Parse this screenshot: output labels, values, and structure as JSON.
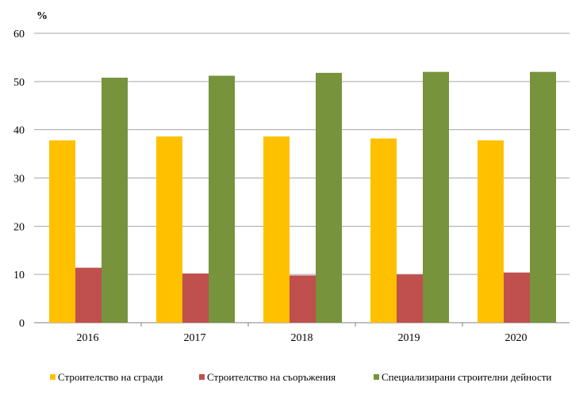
{
  "chart_data": {
    "type": "bar",
    "title": "",
    "xlabel": "",
    "ylabel": "%",
    "ylim": [
      0,
      60
    ],
    "yticks": [
      0,
      10,
      20,
      30,
      40,
      50,
      60
    ],
    "grid": true,
    "legend_position": "bottom",
    "categories": [
      "2016",
      "2017",
      "2018",
      "2019",
      "2020"
    ],
    "series": [
      {
        "name": "Строителство на сгради",
        "color": "#FFC000",
        "values": [
          37.8,
          38.6,
          38.6,
          38.2,
          37.8
        ]
      },
      {
        "name": "Строителство на съоръжения",
        "color": "#C0504D",
        "values": [
          11.4,
          10.2,
          9.8,
          10.0,
          10.4
        ]
      },
      {
        "name": "Специализирани строителни дейности",
        "color": "#77933C",
        "values": [
          50.8,
          51.2,
          51.8,
          52.0,
          52.0
        ]
      }
    ]
  }
}
